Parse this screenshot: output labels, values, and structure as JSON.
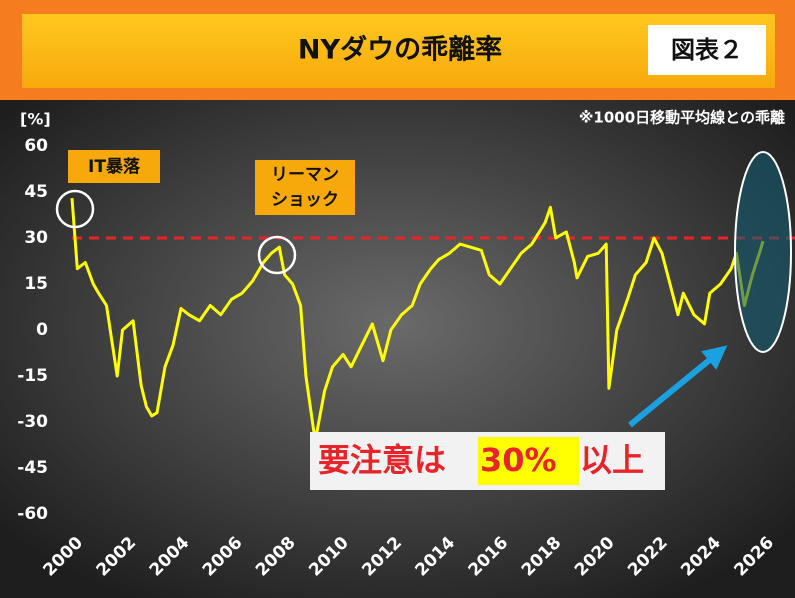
{
  "chart_data": {
    "type": "line",
    "title": "NYダウの乖離率",
    "badge": "図表２",
    "note": "※1000日移動平均線との乖離",
    "y_label": "[%]",
    "annotations": {
      "it": "IT暴落",
      "lehman": [
        "リーマン",
        "ショック"
      ],
      "warning": [
        "要注意は",
        "30%",
        "以上"
      ]
    },
    "threshold": 30,
    "threshold_color": "#e8232a",
    "color": "#ffff00",
    "grid": false,
    "xlim": [
      2000,
      2026
    ],
    "xticks": [
      2000,
      2002,
      2004,
      2006,
      2008,
      2010,
      2012,
      2014,
      2016,
      2018,
      2020,
      2022,
      2024,
      2026
    ],
    "ylim": [
      -60,
      60
    ],
    "yticks": [
      -60,
      -45,
      -30,
      -15,
      0,
      15,
      30,
      45,
      60
    ],
    "x": [
      2000.0,
      2000.2,
      2000.5,
      2000.8,
      2001.0,
      2001.3,
      2001.7,
      2001.9,
      2002.3,
      2002.6,
      2002.8,
      2003.0,
      2003.2,
      2003.5,
      2003.8,
      2004.1,
      2004.4,
      2004.8,
      2005.2,
      2005.6,
      2006.0,
      2006.4,
      2006.8,
      2007.2,
      2007.5,
      2007.8,
      2008.0,
      2008.3,
      2008.6,
      2008.8,
      2009.1,
      2009.2,
      2009.5,
      2009.8,
      2010.2,
      2010.5,
      2010.9,
      2011.3,
      2011.7,
      2012.0,
      2012.4,
      2012.8,
      2013.1,
      2013.5,
      2013.8,
      2014.2,
      2014.6,
      2015.0,
      2015.4,
      2015.7,
      2016.1,
      2016.5,
      2016.9,
      2017.3,
      2017.8,
      2018.0,
      2018.2,
      2018.6,
      2018.9,
      2019.0,
      2019.4,
      2019.8,
      2020.1,
      2020.2,
      2020.5,
      2020.9,
      2021.2,
      2021.6,
      2021.9,
      2022.2,
      2022.5,
      2022.8,
      2023.0,
      2023.4,
      2023.8,
      2024.0,
      2024.4,
      2024.8,
      2025.0,
      2025.3,
      2025.6,
      2025.9,
      2026.0
    ],
    "values": [
      43,
      20,
      22,
      15,
      12,
      8,
      -15,
      0,
      3,
      -18,
      -25,
      -28,
      -27,
      -12,
      -5,
      7,
      5,
      3,
      8,
      5,
      10,
      12,
      16,
      22,
      25,
      27,
      18,
      15,
      8,
      -15,
      -33,
      -34,
      -20,
      -12,
      -8,
      -12,
      -5,
      2,
      -10,
      0,
      5,
      8,
      15,
      20,
      23,
      25,
      28,
      27,
      26,
      18,
      15,
      20,
      25,
      28,
      35,
      40,
      30,
      32,
      22,
      17,
      24,
      25,
      28,
      -19,
      0,
      10,
      18,
      22,
      30,
      25,
      15,
      5,
      12,
      5,
      2,
      12,
      15,
      20,
      25,
      8,
      18,
      26,
      29
    ]
  }
}
